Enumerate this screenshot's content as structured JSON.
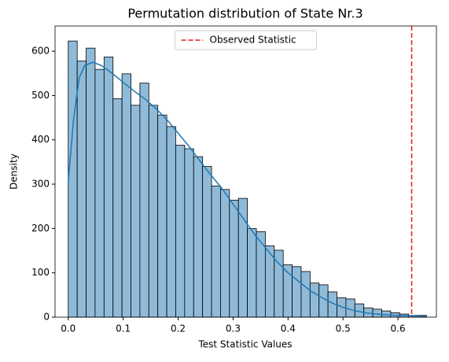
{
  "chart_data": {
    "type": "histogram",
    "title": "Permutation distribution of State Nr.3",
    "x_label": "Test Statistic Values",
    "y_label": "Density",
    "bins": [
      0,
      0.0163,
      0.0326,
      0.0489,
      0.0652,
      0.0815,
      0.0978,
      0.1141,
      0.1304,
      0.1467,
      0.163,
      0.1793,
      0.1956,
      0.2119,
      0.2282,
      0.2445,
      0.2608,
      0.2771,
      0.2934,
      0.3097,
      0.326,
      0.3423,
      0.3586,
      0.3749,
      0.3912,
      0.4075,
      0.4238,
      0.4401,
      0.4564,
      0.4727,
      0.489,
      0.5053,
      0.5216,
      0.5379,
      0.5542,
      0.5705,
      0.5868,
      0.6031,
      0.6194,
      0.6357,
      0.652
    ],
    "counts": [
      623,
      578,
      607,
      559,
      587,
      493,
      549,
      478,
      528,
      478,
      456,
      430,
      388,
      380,
      362,
      340,
      296,
      288,
      264,
      268,
      200,
      193,
      161,
      151,
      118,
      114,
      103,
      77,
      73,
      57,
      44,
      41,
      30,
      21,
      18,
      14,
      10,
      7,
      4,
      4
    ],
    "color": "#8fbbd9",
    "edgecolor": "#000000",
    "kde": {
      "color": "#1f77b4",
      "x": [
        0,
        0.01,
        0.02,
        0.03,
        0.045,
        0.06,
        0.08,
        0.1,
        0.12,
        0.14,
        0.16,
        0.18,
        0.2,
        0.22,
        0.24,
        0.26,
        0.28,
        0.3,
        0.32,
        0.34,
        0.36,
        0.38,
        0.4,
        0.42,
        0.44,
        0.46,
        0.48,
        0.5,
        0.52,
        0.54,
        0.56,
        0.58,
        0.6,
        0.625,
        0.652
      ],
      "values": [
        305,
        450,
        540,
        568,
        575,
        568,
        550,
        530,
        510,
        492,
        470,
        445,
        415,
        385,
        352,
        320,
        290,
        255,
        220,
        185,
        155,
        125,
        100,
        80,
        60,
        45,
        32,
        22,
        15,
        10,
        7,
        5,
        4,
        3,
        2
      ]
    },
    "vline": {
      "name": "Observed Statistic",
      "x": 0.625,
      "color": "#e31a1c"
    },
    "legend": "upper center",
    "xlim": [
      -0.024,
      0.67
    ],
    "ylim": [
      0,
      657
    ],
    "xticks": [
      {
        "value": 0,
        "label": "0.0"
      },
      0.1,
      0.2,
      0.3,
      0.4,
      0.5,
      0.6
    ],
    "yticks": [
      0,
      100,
      200,
      300,
      400,
      500,
      600
    ]
  }
}
